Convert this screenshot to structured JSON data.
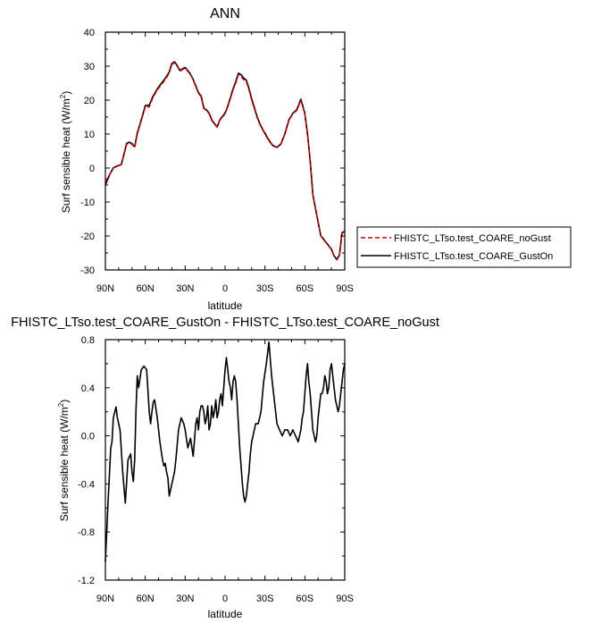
{
  "chart_data": [
    {
      "type": "line",
      "title": "ANN",
      "xlabel": "latitude",
      "ylabel": "Surf sensible heat (W/m",
      "ylabel_sup": "2",
      "ylabel_close": ")",
      "x_direction": "north-to-south",
      "xlim": [
        90,
        -90
      ],
      "ylim": [
        -30,
        40
      ],
      "xticks": [
        90,
        60,
        30,
        0,
        -30,
        -60,
        -90
      ],
      "xtick_labels": [
        "90N",
        "60N",
        "30N",
        "0",
        "30S",
        "60S",
        "90S"
      ],
      "yticks": [
        -30,
        -20,
        -10,
        0,
        10,
        20,
        30,
        40
      ],
      "ytick_labels": [
        "-30",
        "-20",
        "-10",
        "0",
        "10",
        "20",
        "30",
        "40"
      ],
      "legend_position": "right",
      "series": [
        {
          "name": "FHISTC_LTso.test_COARE_noGust",
          "color": "#cc0000",
          "dash": true,
          "x": [
            90,
            87,
            84,
            81,
            78,
            76,
            74,
            72,
            70,
            68,
            66,
            63,
            60,
            57,
            54,
            51,
            48,
            45,
            42,
            40,
            38,
            36,
            34,
            32,
            30,
            28,
            26,
            24,
            22,
            20,
            18,
            16,
            14,
            12,
            10,
            8,
            6,
            4,
            2,
            0,
            -2,
            -4,
            -6,
            -8,
            -10,
            -12,
            -14,
            -16,
            -18,
            -20,
            -22,
            -24,
            -26,
            -28,
            -30,
            -33,
            -36,
            -39,
            -42,
            -45,
            -48,
            -51,
            -54,
            -57,
            -60,
            -62,
            -64,
            -66,
            -68,
            -70,
            -72,
            -74,
            -76,
            -78,
            -80,
            -82,
            -84,
            -86,
            -88,
            -90
          ],
          "values": [
            -4,
            -2,
            0,
            0.5,
            1,
            4,
            7,
            7.5,
            7,
            6,
            10,
            14,
            18,
            18,
            21,
            23,
            24.5,
            26,
            28,
            30.5,
            31,
            30,
            28.5,
            29,
            29.5,
            28.5,
            27.5,
            26,
            24,
            22,
            21,
            17.5,
            17,
            16,
            14,
            13,
            12,
            14,
            15,
            16,
            18,
            20.5,
            23,
            25,
            27.5,
            27,
            26,
            25.5,
            23,
            20,
            17.5,
            15,
            13,
            11.5,
            10,
            8,
            6.5,
            6,
            7,
            10,
            14,
            16,
            17,
            20,
            16,
            10,
            2,
            -8,
            -12,
            -16,
            -20,
            -21,
            -22,
            -23,
            -24,
            -26,
            -27,
            -26,
            -19,
            -19
          ]
        },
        {
          "name": "FHISTC_LTso.test_COARE_GustOn",
          "color": "#000000",
          "dash": false,
          "x": [
            90,
            87,
            84,
            81,
            78,
            76,
            74,
            72,
            70,
            68,
            66,
            63,
            60,
            57,
            54,
            51,
            48,
            45,
            42,
            40,
            38,
            36,
            34,
            32,
            30,
            28,
            26,
            24,
            22,
            20,
            18,
            16,
            14,
            12,
            10,
            8,
            6,
            4,
            2,
            0,
            -2,
            -4,
            -6,
            -8,
            -10,
            -12,
            -14,
            -16,
            -18,
            -20,
            -22,
            -24,
            -26,
            -28,
            -30,
            -33,
            -36,
            -39,
            -42,
            -45,
            -48,
            -51,
            -54,
            -57,
            -60,
            -62,
            -64,
            -66,
            -68,
            -70,
            -72,
            -74,
            -76,
            -78,
            -80,
            -82,
            -84,
            -86,
            -88,
            -90
          ],
          "values": [
            -5,
            -2.1,
            0.1,
            0.6,
            1.1,
            4.1,
            7.3,
            7.6,
            7.2,
            6.3,
            10.3,
            14.2,
            18.4,
            18.5,
            21.3,
            23.3,
            24.9,
            26.4,
            28.3,
            30.8,
            31.3,
            30.2,
            28.7,
            29.2,
            29.6,
            28.7,
            27.6,
            26.1,
            24.2,
            22.2,
            21.2,
            17.7,
            17.1,
            16.2,
            14.2,
            13.1,
            12.1,
            14.1,
            15.2,
            16.2,
            18.2,
            20.7,
            23.3,
            25.4,
            27.9,
            27.5,
            26.5,
            25.9,
            23.4,
            20.4,
            17.8,
            15.3,
            13.2,
            11.6,
            10.2,
            8.2,
            6.6,
            6.1,
            7.1,
            10.1,
            14.2,
            16.1,
            17.2,
            20.3,
            16.1,
            10.1,
            2.2,
            -7.8,
            -11.9,
            -15.9,
            -19.9,
            -20.9,
            -21.9,
            -22.9,
            -23.9,
            -25.9,
            -26.8,
            -25.7,
            -19,
            -18.6
          ]
        }
      ]
    },
    {
      "type": "line",
      "title": "FHISTC_LTso.test_COARE_GustOn - FHISTC_LTso.test_COARE_noGust",
      "xlabel": "latitude",
      "ylabel": "Surf sensible heat (W/m",
      "ylabel_sup": "2",
      "ylabel_close": ")",
      "x_direction": "north-to-south",
      "xlim": [
        90,
        -90
      ],
      "ylim": [
        -1.2,
        0.8
      ],
      "xticks": [
        90,
        60,
        30,
        0,
        -30,
        -60,
        -90
      ],
      "xtick_labels": [
        "90N",
        "60N",
        "30N",
        "0",
        "30S",
        "60S",
        "90S"
      ],
      "yticks": [
        -1.2,
        -0.8,
        -0.4,
        0.0,
        0.4,
        0.8
      ],
      "ytick_labels": [
        "-1.2",
        "-0.8",
        "-0.4",
        "0.0",
        "0.4",
        "0.8"
      ],
      "series": [
        {
          "color": "#000000",
          "x": [
            90,
            88,
            86,
            85,
            84,
            82,
            81,
            80,
            79,
            77,
            75,
            73,
            71,
            70,
            69,
            68,
            67,
            66,
            65,
            63,
            61,
            59,
            57,
            56,
            55,
            54,
            53,
            51,
            49,
            47,
            46,
            45,
            44,
            43,
            42,
            40,
            38,
            37,
            35,
            33,
            31,
            30,
            28,
            26,
            24,
            22,
            21,
            20,
            19,
            18,
            17,
            16,
            15,
            14,
            13,
            12,
            11,
            10,
            9,
            8,
            7,
            6,
            5,
            4,
            3,
            2,
            1,
            0,
            -1,
            -2,
            -3,
            -4,
            -5,
            -6,
            -7,
            -8,
            -9,
            -10,
            -11,
            -12,
            -13,
            -14,
            -15,
            -16,
            -17,
            -18,
            -19,
            -20,
            -22,
            -23,
            -24,
            -25,
            -27,
            -29,
            -31,
            -33,
            -35,
            -37,
            -39,
            -41,
            -43,
            -45,
            -47,
            -49,
            -51,
            -53,
            -55,
            -56,
            -57,
            -58,
            -59,
            -60,
            -61,
            -62,
            -63,
            -64,
            -65,
            -66,
            -67,
            -68,
            -69,
            -70,
            -71,
            -72,
            -73,
            -74,
            -75,
            -76,
            -77,
            -78,
            -79,
            -80,
            -81,
            -82,
            -83,
            -84,
            -85,
            -86,
            -87,
            -88,
            -89,
            -90
          ],
          "values": [
            -1.05,
            -0.55,
            -0.1,
            -0.05,
            0.15,
            0.24,
            0.15,
            0.1,
            0.05,
            -0.3,
            -0.56,
            -0.2,
            -0.15,
            -0.3,
            -0.38,
            -0.2,
            0.2,
            0.5,
            0.4,
            0.55,
            0.58,
            0.55,
            0.2,
            0.1,
            0.2,
            0.28,
            0.3,
            0.15,
            -0.05,
            -0.2,
            -0.25,
            -0.23,
            -0.3,
            -0.35,
            -0.5,
            -0.4,
            -0.3,
            -0.2,
            0.05,
            0.15,
            0.1,
            0.05,
            -0.1,
            -0.02,
            -0.17,
            0.1,
            0.15,
            0.05,
            0.2,
            0.25,
            0.25,
            0.2,
            0.1,
            0.15,
            0.25,
            0.05,
            0.1,
            0.25,
            0.15,
            0.2,
            0.3,
            0.15,
            0.2,
            0.3,
            0.35,
            0.25,
            0.4,
            0.55,
            0.65,
            0.55,
            0.45,
            0.4,
            0.3,
            0.45,
            0.5,
            0.45,
            0.3,
            0.1,
            -0.1,
            -0.25,
            -0.4,
            -0.5,
            -0.55,
            -0.5,
            -0.4,
            -0.3,
            -0.15,
            -0.05,
            0.05,
            0.1,
            0.1,
            0.1,
            0.2,
            0.45,
            0.6,
            0.78,
            0.5,
            0.3,
            0.1,
            0.05,
            0.0,
            0.05,
            0.05,
            0.0,
            0.05,
            0.0,
            -0.05,
            0.0,
            0.05,
            0.15,
            0.2,
            0.35,
            0.5,
            0.6,
            0.45,
            0.35,
            0.2,
            0.05,
            0.0,
            -0.05,
            0.0,
            0.15,
            0.25,
            0.35,
            0.35,
            0.4,
            0.5,
            0.45,
            0.35,
            0.4,
            0.55,
            0.6,
            0.5,
            0.4,
            0.3,
            0.25,
            0.2,
            0.25,
            0.35,
            0.45,
            0.55,
            0.6
          ]
        }
      ]
    }
  ]
}
